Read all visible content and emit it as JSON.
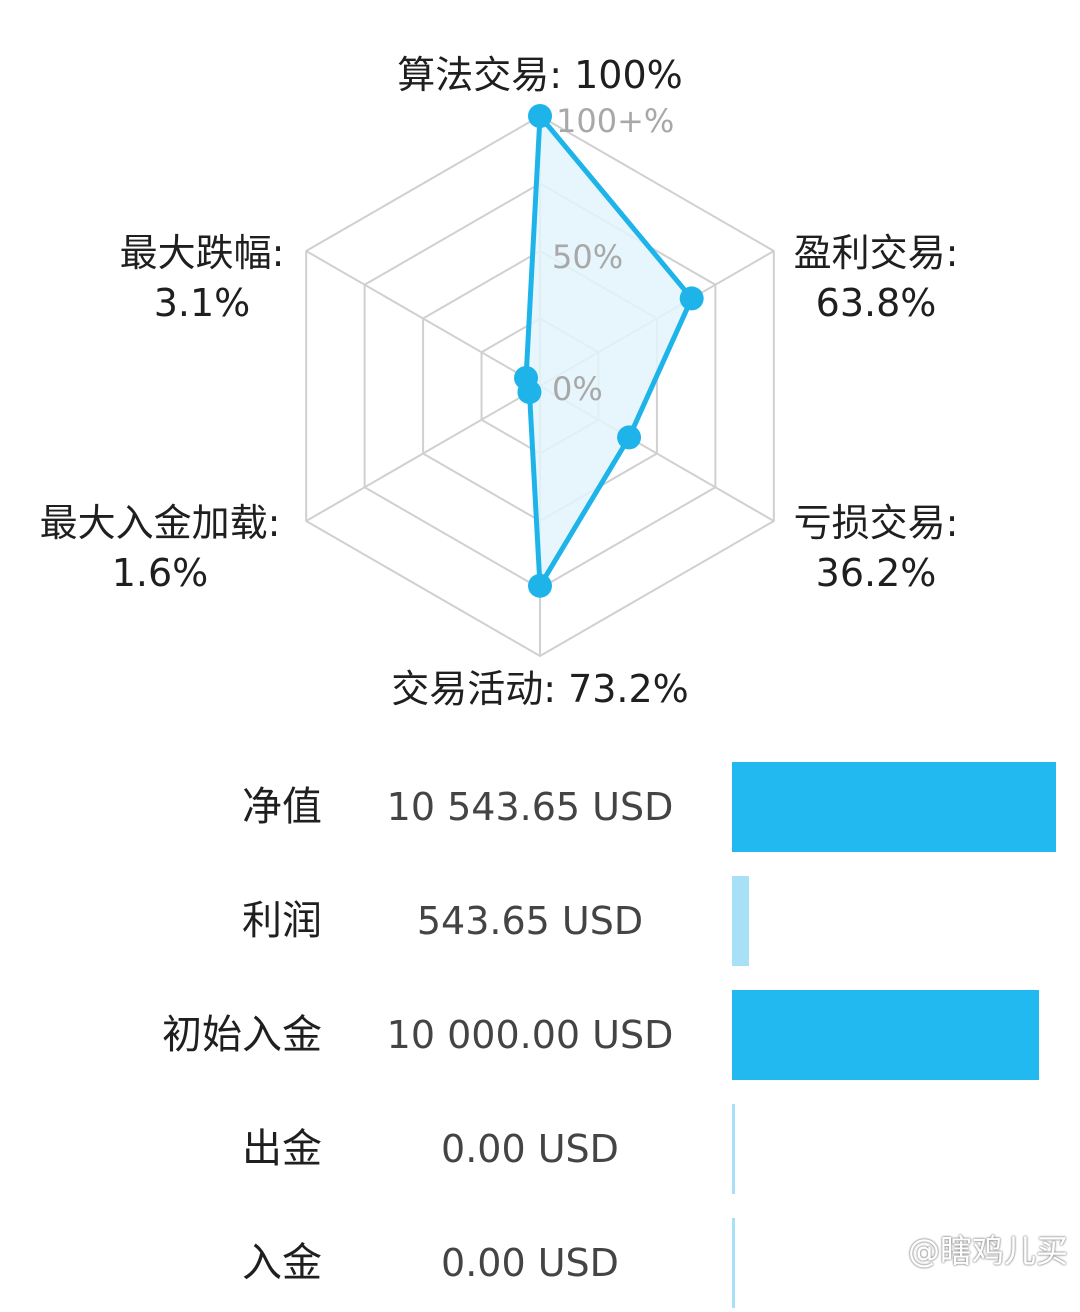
{
  "chart_data": [
    {
      "type": "radar",
      "axes": [
        {
          "name": "算法交易",
          "label": "算法交易: 100%",
          "value": 100
        },
        {
          "name": "盈利交易",
          "label": "盈利交易:",
          "value_label": "63.8%",
          "value": 63.8
        },
        {
          "name": "亏损交易",
          "label": "亏损交易:",
          "value_label": "36.2%",
          "value": 36.2
        },
        {
          "name": "交易活动",
          "label": "交易活动: 73.2%",
          "value": 73.2
        },
        {
          "name": "最大入金加载",
          "label": "最大入金加载:",
          "value_label": "1.6%",
          "value": 1.6
        },
        {
          "name": "最大跌幅",
          "label": "最大跌幅:",
          "value_label": "3.1%",
          "value": 3.1
        }
      ],
      "ring_labels": [
        "0%",
        "50%",
        "100+%"
      ],
      "range": [
        0,
        100
      ],
      "color": "#1EB4EA",
      "fill_color": "#E3F5FC",
      "grid_color": "#D0D0D0"
    },
    {
      "type": "bar",
      "orientation": "horizontal",
      "categories": [
        "净值",
        "利润",
        "初始入金",
        "出金",
        "入金"
      ],
      "value_labels": [
        "10 543.65 USD",
        "543.65 USD",
        "10 000.00 USD",
        "0.00 USD",
        "0.00 USD"
      ],
      "values": [
        10543.65,
        543.65,
        10000.0,
        0.0,
        0.0
      ],
      "colors": [
        "#22B8F0",
        "#A8E0F7",
        "#22B8F0",
        "#A8E0F7",
        "#A8E0F7"
      ]
    }
  ],
  "watermark": "@瞎鸡儿买"
}
